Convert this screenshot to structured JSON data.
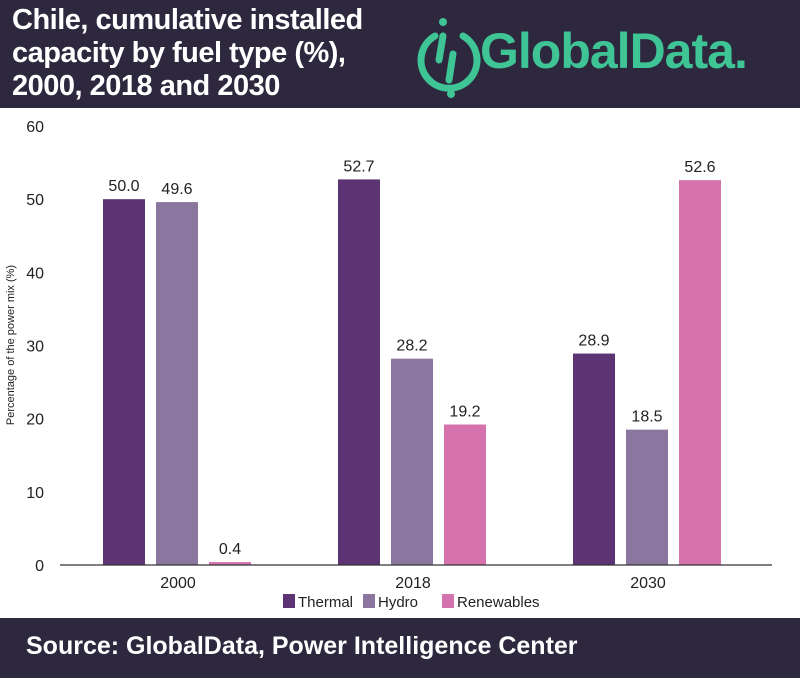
{
  "header": {
    "title": "Chile, cumulative installed capacity by fuel type (%), 2000, 2018 and 2030",
    "logo_text": "GlobalData."
  },
  "footer": {
    "source": "Source:  GlobalData, Power Intelligence Center"
  },
  "colors": {
    "Thermal": "#5c3473",
    "Hydro": "#8b76a0",
    "Renewables": "#d673ae",
    "brand": "#3fc495",
    "dark": "#2d283e"
  },
  "chart_data": {
    "type": "bar",
    "title": "Chile, cumulative installed capacity by fuel type (%), 2000, 2018 and 2030",
    "xlabel": "",
    "ylabel": "Percentage of the power mix (%)",
    "ylim": [
      0,
      60
    ],
    "yticks": [
      "0",
      "10",
      "20",
      "30",
      "40",
      "50",
      "60"
    ],
    "categories": [
      "2000",
      "2018",
      "2030"
    ],
    "series": [
      {
        "name": "Thermal",
        "values": [
          50.0,
          52.7,
          28.9
        ],
        "labels": [
          "50.0",
          "52.7",
          "28.9"
        ]
      },
      {
        "name": "Hydro",
        "values": [
          49.6,
          28.2,
          18.5
        ],
        "labels": [
          "49.6",
          "28.2",
          "18.5"
        ]
      },
      {
        "name": "Renewables",
        "values": [
          0.4,
          19.2,
          52.6
        ],
        "labels": [
          "0.4",
          "19.2",
          "52.6"
        ]
      }
    ],
    "grid": false,
    "legend": "bottom"
  }
}
